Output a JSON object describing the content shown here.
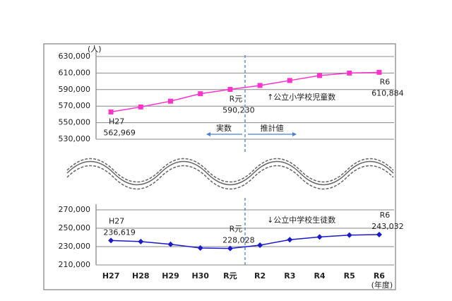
{
  "chart_data": [
    {
      "type": "line",
      "ylabel": "(人)",
      "categories": [
        "H27",
        "H28",
        "H29",
        "H30",
        "R元",
        "R2",
        "R3",
        "R4",
        "R5",
        "R6"
      ],
      "series": [
        {
          "name": "↑公立小学校児童数",
          "color": "#ff33cc",
          "marker": "square",
          "values": [
            562969,
            569000,
            576000,
            585000,
            590230,
            595000,
            601000,
            607000,
            610000,
            610884
          ],
          "value_labels": [
            "562,969",
            null,
            null,
            null,
            "590,230",
            null,
            null,
            null,
            null,
            "610,884"
          ]
        }
      ],
      "ylim": [
        530000,
        630000
      ],
      "yticks": [
        {
          "value": 530000,
          "label": "530,000"
        },
        {
          "value": 550000,
          "label": "550,000"
        },
        {
          "value": 570000,
          "label": "570,000"
        },
        {
          "value": 590000,
          "label": "590,000"
        },
        {
          "value": 610000,
          "label": "610,000"
        },
        {
          "value": 630000,
          "label": "630,000"
        }
      ],
      "annotations": [
        "実数",
        "推計値"
      ],
      "grid": true
    },
    {
      "type": "line",
      "xlabel": "(年度)",
      "categories": [
        "H27",
        "H28",
        "H29",
        "H30",
        "R元",
        "R2",
        "R3",
        "R4",
        "R5",
        "R6"
      ],
      "series": [
        {
          "name": "↓公立中学校生徒数",
          "color": "#1a1acc",
          "marker": "diamond",
          "values": [
            236619,
            235500,
            232500,
            228500,
            228028,
            231500,
            237500,
            240500,
            242500,
            243032
          ],
          "value_labels": [
            "236,619",
            null,
            null,
            null,
            "228,028",
            null,
            null,
            null,
            null,
            "243,032"
          ]
        }
      ],
      "ylim": [
        210000,
        270000
      ],
      "yticks": [
        {
          "value": 210000,
          "label": "210,000"
        },
        {
          "value": 230000,
          "label": "230,000"
        },
        {
          "value": 250000,
          "label": "250,000"
        },
        {
          "value": 270000,
          "label": "270,000"
        }
      ],
      "grid": true
    }
  ]
}
